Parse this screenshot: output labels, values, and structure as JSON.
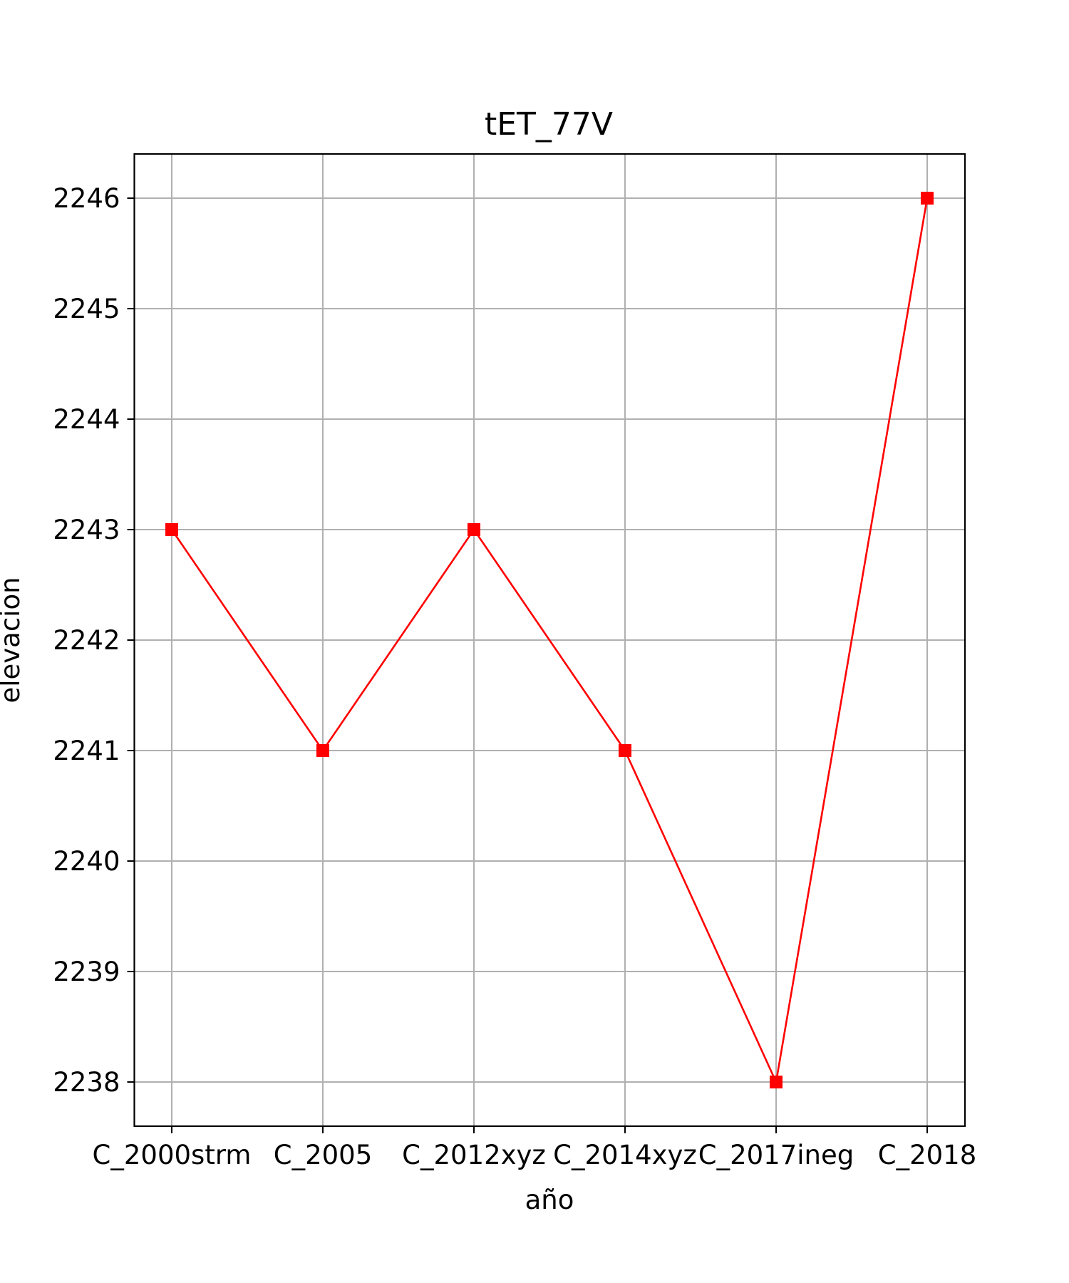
{
  "chart_data": {
    "type": "line",
    "title": "tET_77V",
    "xlabel": "año",
    "ylabel": "elevacion",
    "categories": [
      "C_2000strm",
      "C_2005",
      "C_2012xyz",
      "C_2014xyz",
      "C_2017ineg",
      "C_2018"
    ],
    "series": [
      {
        "values": [
          2243,
          2241,
          2243,
          2241,
          2238,
          2246
        ],
        "color": "#ff0000",
        "marker": "square"
      }
    ],
    "yticks": [
      2238,
      2239,
      2240,
      2241,
      2242,
      2243,
      2244,
      2245,
      2246
    ],
    "ylim": [
      2237.6,
      2246.4
    ],
    "grid": true,
    "grid_color": "#b0b0b0"
  }
}
